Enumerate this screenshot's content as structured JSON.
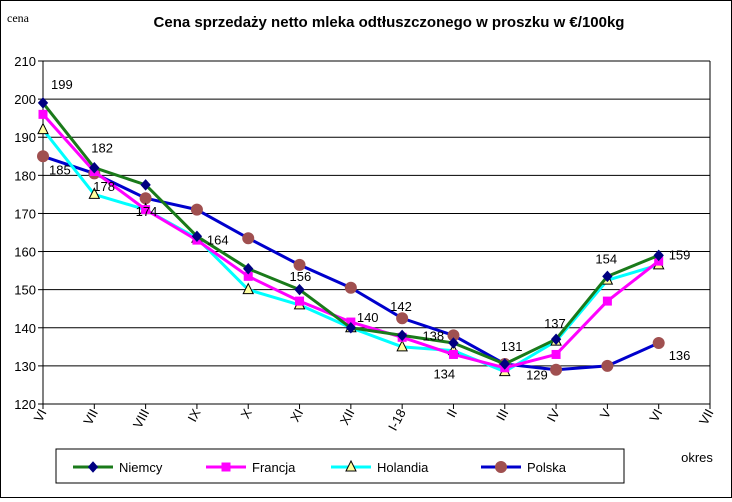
{
  "chart_data": {
    "type": "line",
    "title": "Cena sprzedaży netto mleka odtłuszczonego w proszku w €/100kg",
    "ylabel": "cena",
    "xlabel": "okres",
    "ylim": [
      120,
      210
    ],
    "yticks": [
      120,
      130,
      140,
      150,
      160,
      170,
      180,
      190,
      200,
      210
    ],
    "grid": true,
    "legend_position": "bottom",
    "categories": [
      "VI",
      "VII",
      "VIII",
      "IX",
      "X",
      "XI",
      "XII",
      "I-18",
      "II",
      "III",
      "IV",
      "V",
      "VI",
      "VII"
    ],
    "series": [
      {
        "name": "Niemcy",
        "color": "#1a7a1a",
        "marker": "diamond",
        "marker_color": "#000080",
        "values": [
          199,
          182,
          177.5,
          164,
          155.5,
          150,
          140,
          138,
          136,
          130.5,
          137,
          153.5,
          159,
          null
        ]
      },
      {
        "name": "Francja",
        "color": "#ff00ff",
        "marker": "square",
        "marker_color": "#ff00ff",
        "values": [
          196,
          181,
          171,
          163,
          153.5,
          147,
          141.5,
          137.5,
          133,
          129.5,
          133,
          147,
          157.5,
          null
        ]
      },
      {
        "name": "Holandia",
        "color": "#00ffff",
        "marker": "triangle",
        "marker_color": "#ffffa0",
        "values": [
          192,
          175,
          171,
          163.5,
          150,
          146,
          140,
          135,
          134,
          128.5,
          136.5,
          152.5,
          156.5,
          null
        ]
      },
      {
        "name": "Polska",
        "color": "#0000cc",
        "marker": "circle",
        "marker_color": "#a05050",
        "values": [
          185,
          180.5,
          174,
          171,
          163.5,
          156.5,
          150.5,
          142.5,
          138,
          130.5,
          129,
          130,
          136,
          null
        ]
      }
    ],
    "data_labels": [
      {
        "text": "199",
        "category": 0,
        "value": 199
      },
      {
        "text": "182",
        "category": 1,
        "value": 182
      },
      {
        "text": "178",
        "category": 1,
        "value": 178
      },
      {
        "text": "185",
        "category": 0,
        "value": 185
      },
      {
        "text": "174",
        "category": 2,
        "value": 174
      },
      {
        "text": "164",
        "category": 3,
        "value": 164
      },
      {
        "text": "156",
        "category": 5,
        "value": 156
      },
      {
        "text": "140",
        "category": 6,
        "value": 140
      },
      {
        "text": "142",
        "category": 7,
        "value": 142
      },
      {
        "text": "138",
        "category": 8,
        "value": 138
      },
      {
        "text": "134",
        "category": 8,
        "value": 134
      },
      {
        "text": "131",
        "category": 9,
        "value": 131
      },
      {
        "text": "129",
        "category": 10,
        "value": 129
      },
      {
        "text": "137",
        "category": 10,
        "value": 137
      },
      {
        "text": "154",
        "category": 11,
        "value": 154
      },
      {
        "text": "159",
        "category": 12,
        "value": 159
      },
      {
        "text": "136",
        "category": 12,
        "value": 136
      }
    ]
  }
}
